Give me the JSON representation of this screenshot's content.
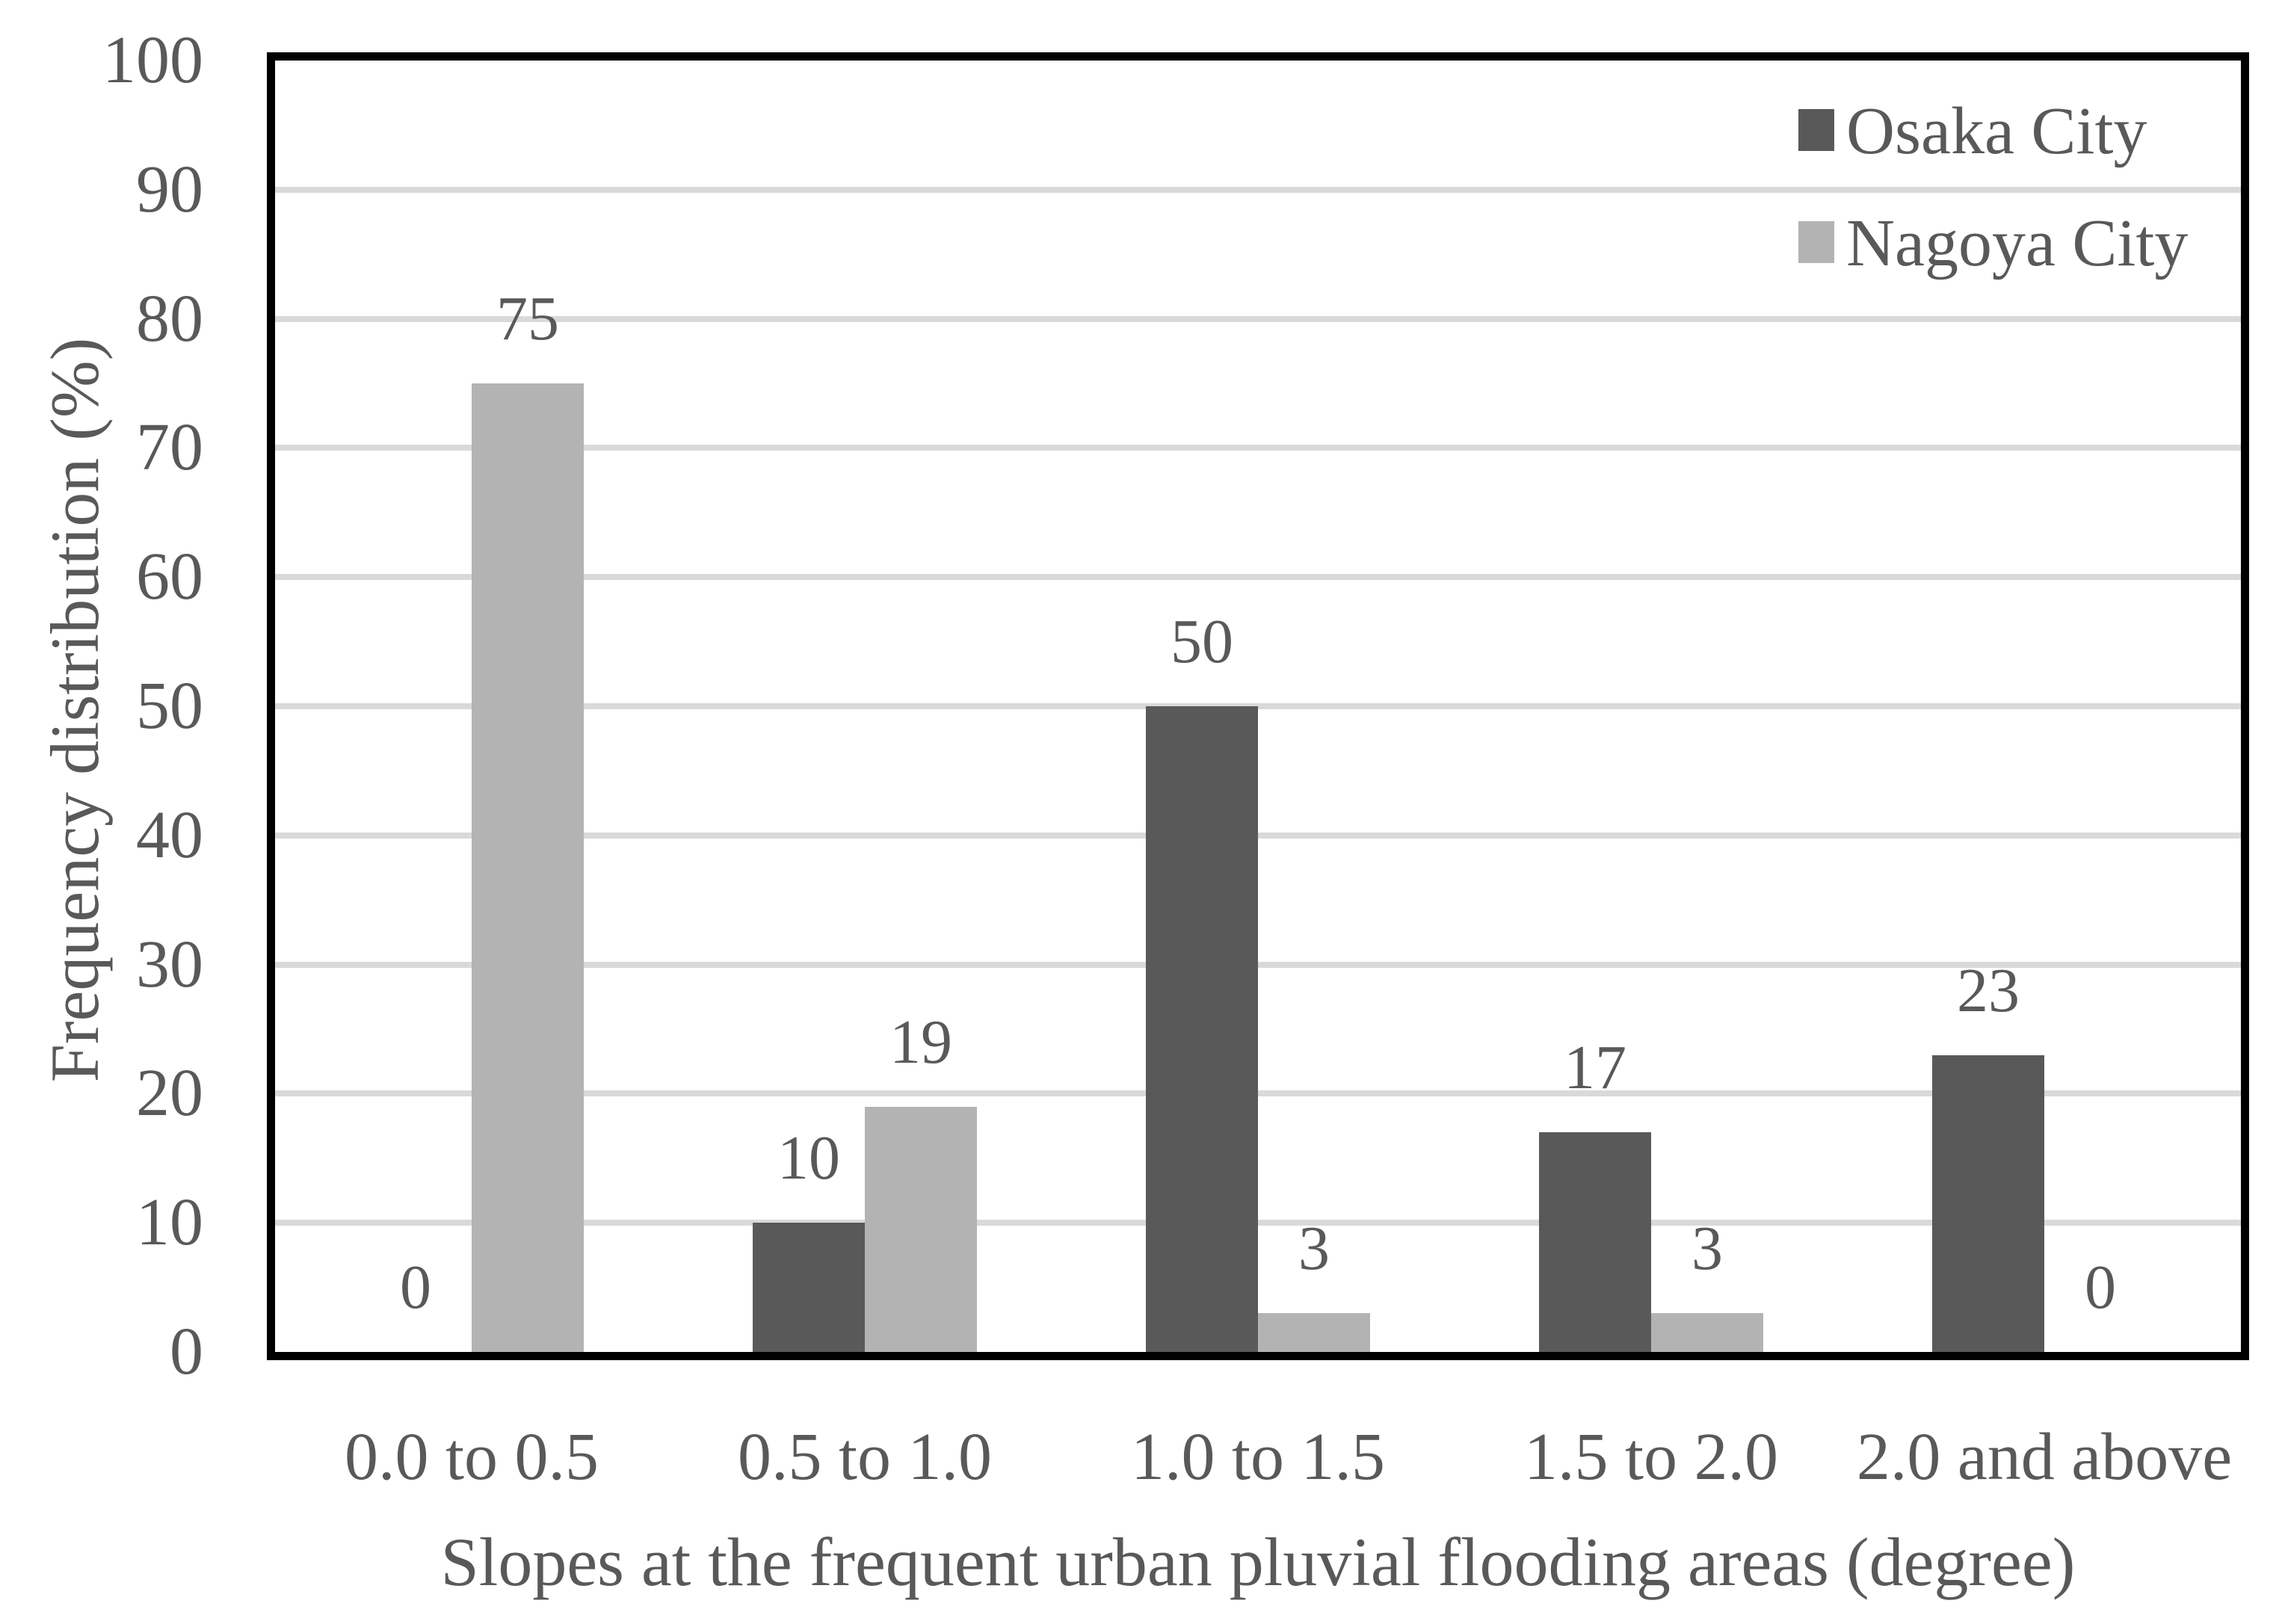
{
  "figure": {
    "background": "#ffffff"
  },
  "chart_data": {
    "type": "bar",
    "title": "",
    "categories": [
      "0.0 to 0.5",
      "0.5 to 1.0",
      "1.0 to 1.5",
      "1.5 to 2.0",
      "2.0 and above"
    ],
    "series": [
      {
        "name": "Osaka City",
        "color": "#595959",
        "values": [
          0,
          10,
          50,
          17,
          23
        ]
      },
      {
        "name": "Nagoya City",
        "color": "#b3b3b3",
        "values": [
          75,
          19,
          3,
          3,
          0
        ]
      }
    ],
    "data_labels": {
      "shown": true,
      "osaka_city": [
        "0",
        "10",
        "50",
        "17",
        "23"
      ],
      "nagoya_city": [
        "75",
        "19",
        "3",
        "3",
        "0"
      ]
    },
    "xlabel": "Slopes at the frequent urban pluvial flooding areas (degree)",
    "ylabel": "Frequency distribution (%)",
    "ylim": [
      0,
      100
    ],
    "yticks": [
      0,
      10,
      20,
      30,
      40,
      50,
      60,
      70,
      80,
      90,
      100
    ],
    "grid": true,
    "legend": {
      "position": "top-right",
      "entries": [
        "Osaka City",
        "Nagoya City"
      ]
    },
    "colors": {
      "gridline": "#d9d9d9",
      "axis_border": "#000000",
      "text": "#595959",
      "background": "#ffffff"
    }
  }
}
